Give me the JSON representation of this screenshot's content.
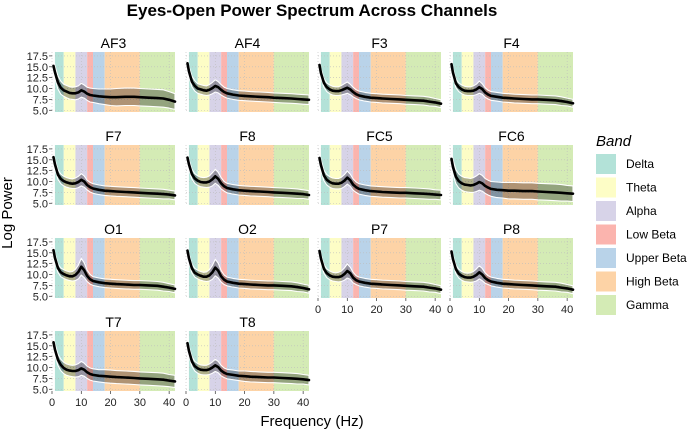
{
  "chart_data": {
    "type": "line",
    "title": "Eyes-Open Power Spectrum Across Channels",
    "xlabel": "Frequency (Hz)",
    "ylabel": "Log Power",
    "x_ticks": [
      0,
      10,
      20,
      30,
      40
    ],
    "y_ticks": [
      "5.0",
      "7.5",
      "10.0",
      "12.5",
      "15.0",
      "17.5"
    ],
    "xlim": [
      0,
      42
    ],
    "ylim": [
      4.6,
      18.4
    ],
    "legend": {
      "title": "Band",
      "position": "right",
      "items": [
        "Delta",
        "Theta",
        "Alpha",
        "Low Beta",
        "Upper Beta",
        "High Beta",
        "Gamma"
      ]
    },
    "bands": [
      {
        "name": "Delta",
        "from": 1,
        "to": 4,
        "color": "#b3e2d8"
      },
      {
        "name": "Theta",
        "from": 4,
        "to": 8,
        "color": "#fdfdc6"
      },
      {
        "name": "Alpha",
        "from": 8,
        "to": 12,
        "color": "#d7d3e8"
      },
      {
        "name": "Low Beta",
        "from": 12,
        "to": 14,
        "color": "#fbb4ae"
      },
      {
        "name": "Upper Beta",
        "from": 14,
        "to": 18,
        "color": "#b9d3e9"
      },
      {
        "name": "High Beta",
        "from": 18,
        "to": 30,
        "color": "#fdd3a6"
      },
      {
        "name": "Gamma",
        "from": 30,
        "to": 42,
        "color": "#d4ebb5"
      }
    ],
    "series": [
      {
        "name": "AF3",
        "x": [
          0.5,
          1,
          2,
          3,
          4,
          5,
          6,
          7,
          8,
          9,
          10,
          11,
          12,
          13,
          14,
          16,
          18,
          20,
          22,
          25,
          28,
          30,
          33,
          36,
          38,
          40,
          42
        ],
        "mean": [
          15.2,
          13.8,
          11.4,
          10.2,
          9.6,
          9.3,
          9.0,
          8.9,
          8.9,
          9.1,
          9.6,
          9.3,
          8.8,
          8.5,
          8.4,
          8.2,
          8.1,
          8.0,
          8.0,
          8.1,
          8.1,
          8.0,
          7.9,
          7.8,
          7.7,
          7.4,
          7.0
        ],
        "spread": [
          1.6,
          1.5,
          1.5,
          1.5,
          1.4,
          1.4,
          1.4,
          1.4,
          1.5,
          1.5,
          1.6,
          1.5,
          1.5,
          1.6,
          1.6,
          1.7,
          1.8,
          1.9,
          2.0,
          2.0,
          2.0,
          2.0,
          2.0,
          2.0,
          2.0,
          1.9,
          1.8
        ]
      },
      {
        "name": "AF4",
        "x": [
          0.5,
          1,
          2,
          3,
          4,
          5,
          6,
          7,
          8,
          9,
          10,
          11,
          12,
          13,
          14,
          16,
          18,
          20,
          22,
          25,
          28,
          30,
          33,
          36,
          38,
          40,
          42
        ],
        "mean": [
          15.8,
          14.0,
          11.6,
          10.6,
          10.0,
          9.8,
          9.6,
          9.5,
          9.7,
          10.1,
          10.6,
          10.3,
          9.7,
          9.2,
          8.9,
          8.6,
          8.4,
          8.3,
          8.2,
          8.1,
          8.0,
          7.9,
          7.8,
          7.7,
          7.6,
          7.5,
          7.4
        ],
        "spread": [
          1.4,
          1.3,
          1.2,
          1.2,
          1.1,
          1.1,
          1.1,
          1.1,
          1.2,
          1.3,
          1.4,
          1.3,
          1.2,
          1.1,
          1.1,
          1.1,
          1.1,
          1.1,
          1.1,
          1.1,
          1.1,
          1.1,
          1.1,
          1.1,
          1.1,
          1.1,
          1.1
        ]
      },
      {
        "name": "F3",
        "x": [
          0.5,
          1,
          2,
          3,
          4,
          5,
          6,
          7,
          8,
          9,
          10,
          11,
          12,
          13,
          14,
          16,
          18,
          20,
          22,
          25,
          28,
          30,
          33,
          36,
          38,
          40,
          42
        ],
        "mean": [
          15.4,
          13.6,
          11.3,
          10.3,
          9.8,
          9.5,
          9.4,
          9.4,
          9.6,
          9.9,
          10.2,
          9.8,
          9.2,
          8.7,
          8.4,
          8.1,
          7.9,
          7.8,
          7.7,
          7.6,
          7.5,
          7.4,
          7.3,
          7.2,
          7.0,
          6.8,
          6.5
        ],
        "spread": [
          1.2,
          1.1,
          1.0,
          1.0,
          1.0,
          1.0,
          1.0,
          1.0,
          1.1,
          1.2,
          1.3,
          1.2,
          1.1,
          1.0,
          1.0,
          1.0,
          1.0,
          1.0,
          1.0,
          1.0,
          1.0,
          1.0,
          1.0,
          1.0,
          1.0,
          0.9,
          0.9
        ]
      },
      {
        "name": "F4",
        "x": [
          0.5,
          1,
          2,
          3,
          4,
          5,
          6,
          7,
          8,
          9,
          10,
          11,
          12,
          13,
          14,
          16,
          18,
          20,
          22,
          25,
          28,
          30,
          33,
          36,
          38,
          40,
          42
        ],
        "mean": [
          15.6,
          13.7,
          11.2,
          10.3,
          9.8,
          9.5,
          9.4,
          9.4,
          9.5,
          9.8,
          10.3,
          9.9,
          9.1,
          8.6,
          8.3,
          8.1,
          7.9,
          7.8,
          7.7,
          7.6,
          7.5,
          7.5,
          7.4,
          7.3,
          7.1,
          6.9,
          6.6
        ],
        "spread": [
          1.2,
          1.1,
          1.0,
          1.0,
          1.0,
          1.0,
          1.0,
          1.0,
          1.1,
          1.2,
          1.4,
          1.2,
          1.1,
          1.0,
          1.0,
          1.0,
          1.0,
          1.0,
          1.0,
          1.0,
          1.0,
          1.0,
          1.0,
          1.0,
          1.0,
          0.9,
          0.9
        ]
      },
      {
        "name": "F7",
        "x": [
          0.5,
          1,
          2,
          3,
          4,
          5,
          6,
          7,
          8,
          9,
          10,
          11,
          12,
          13,
          14,
          16,
          18,
          20,
          22,
          25,
          28,
          30,
          33,
          36,
          38,
          40,
          42
        ],
        "mean": [
          15.6,
          14.0,
          11.6,
          10.6,
          10.1,
          9.8,
          9.6,
          9.5,
          9.6,
          9.9,
          10.4,
          10.0,
          9.2,
          8.7,
          8.4,
          8.1,
          7.9,
          7.8,
          7.7,
          7.6,
          7.5,
          7.4,
          7.3,
          7.2,
          7.1,
          7.0,
          6.8
        ],
        "spread": [
          1.3,
          1.2,
          1.1,
          1.1,
          1.1,
          1.1,
          1.1,
          1.1,
          1.2,
          1.3,
          1.4,
          1.3,
          1.1,
          1.1,
          1.1,
          1.1,
          1.1,
          1.1,
          1.1,
          1.1,
          1.1,
          1.1,
          1.1,
          1.1,
          1.1,
          1.0,
          1.0
        ]
      },
      {
        "name": "F8",
        "x": [
          0.5,
          1,
          2,
          3,
          4,
          5,
          6,
          7,
          8,
          9,
          10,
          11,
          12,
          13,
          14,
          16,
          18,
          20,
          22,
          25,
          28,
          30,
          33,
          36,
          38,
          40,
          42
        ],
        "mean": [
          15.5,
          14.0,
          11.7,
          10.7,
          10.2,
          9.9,
          9.8,
          9.8,
          10.0,
          10.5,
          11.2,
          10.6,
          9.6,
          8.9,
          8.5,
          8.2,
          8.0,
          7.9,
          7.8,
          7.7,
          7.6,
          7.5,
          7.4,
          7.3,
          7.2,
          7.1,
          6.9
        ],
        "spread": [
          1.3,
          1.2,
          1.1,
          1.1,
          1.1,
          1.1,
          1.1,
          1.2,
          1.3,
          1.5,
          1.6,
          1.5,
          1.3,
          1.1,
          1.1,
          1.1,
          1.1,
          1.1,
          1.1,
          1.1,
          1.1,
          1.1,
          1.1,
          1.1,
          1.1,
          1.0,
          1.0
        ]
      },
      {
        "name": "FC5",
        "x": [
          0.5,
          1,
          2,
          3,
          4,
          5,
          6,
          7,
          8,
          9,
          10,
          11,
          12,
          13,
          14,
          16,
          18,
          20,
          22,
          25,
          28,
          30,
          33,
          36,
          38,
          40,
          42
        ],
        "mean": [
          15.4,
          13.8,
          11.4,
          10.4,
          9.9,
          9.6,
          9.5,
          9.5,
          9.7,
          10.2,
          10.9,
          10.3,
          9.3,
          8.7,
          8.3,
          8.0,
          7.8,
          7.7,
          7.6,
          7.5,
          7.4,
          7.4,
          7.3,
          7.2,
          7.1,
          7.0,
          6.9
        ],
        "spread": [
          1.4,
          1.3,
          1.2,
          1.2,
          1.2,
          1.2,
          1.2,
          1.2,
          1.3,
          1.4,
          1.5,
          1.4,
          1.3,
          1.2,
          1.2,
          1.2,
          1.2,
          1.2,
          1.2,
          1.2,
          1.2,
          1.2,
          1.2,
          1.2,
          1.2,
          1.1,
          1.1
        ]
      },
      {
        "name": "FC6",
        "x": [
          0.5,
          1,
          2,
          3,
          4,
          5,
          6,
          7,
          8,
          9,
          10,
          11,
          12,
          13,
          14,
          16,
          18,
          20,
          22,
          25,
          28,
          30,
          33,
          36,
          38,
          40,
          42
        ],
        "mean": [
          15.2,
          13.4,
          11.1,
          10.1,
          9.6,
          9.3,
          9.2,
          9.1,
          9.2,
          9.5,
          9.9,
          9.6,
          9.0,
          8.6,
          8.3,
          8.1,
          8.0,
          7.9,
          7.9,
          7.8,
          7.8,
          7.7,
          7.6,
          7.5,
          7.4,
          7.3,
          7.2
        ],
        "spread": [
          1.8,
          1.7,
          1.6,
          1.6,
          1.6,
          1.6,
          1.6,
          1.6,
          1.7,
          1.8,
          1.9,
          1.8,
          1.7,
          1.7,
          1.7,
          1.8,
          1.8,
          1.9,
          1.9,
          1.9,
          1.9,
          1.9,
          1.9,
          1.9,
          1.9,
          1.8,
          1.8
        ]
      },
      {
        "name": "O1",
        "x": [
          0.5,
          1,
          2,
          3,
          4,
          5,
          6,
          7,
          8,
          9,
          10,
          11,
          12,
          13,
          14,
          16,
          18,
          20,
          22,
          25,
          28,
          30,
          33,
          36,
          38,
          40,
          42
        ],
        "mean": [
          15.6,
          13.9,
          11.5,
          10.5,
          10.1,
          9.8,
          9.6,
          9.6,
          9.9,
          10.6,
          11.8,
          11.0,
          9.7,
          8.9,
          8.5,
          8.2,
          8.0,
          7.9,
          7.8,
          7.7,
          7.6,
          7.6,
          7.5,
          7.4,
          7.2,
          7.0,
          6.7
        ],
        "spread": [
          1.2,
          1.1,
          1.0,
          1.0,
          1.0,
          1.0,
          1.0,
          1.1,
          1.3,
          1.6,
          1.9,
          1.7,
          1.3,
          1.1,
          1.0,
          1.0,
          1.0,
          1.0,
          1.0,
          1.0,
          1.0,
          1.0,
          1.0,
          1.0,
          1.0,
          0.9,
          0.9
        ]
      },
      {
        "name": "O2",
        "x": [
          0.5,
          1,
          2,
          3,
          4,
          5,
          6,
          7,
          8,
          9,
          10,
          11,
          12,
          13,
          14,
          16,
          18,
          20,
          22,
          25,
          28,
          30,
          33,
          36,
          38,
          40,
          42
        ],
        "mean": [
          15.5,
          13.8,
          11.4,
          10.4,
          10.0,
          9.7,
          9.5,
          9.5,
          9.8,
          10.5,
          11.6,
          10.9,
          9.6,
          8.8,
          8.4,
          8.1,
          7.9,
          7.8,
          7.7,
          7.6,
          7.5,
          7.5,
          7.4,
          7.3,
          7.1,
          6.9,
          6.6
        ],
        "spread": [
          1.2,
          1.1,
          1.0,
          1.0,
          1.0,
          1.0,
          1.0,
          1.1,
          1.3,
          1.6,
          1.9,
          1.7,
          1.3,
          1.1,
          1.0,
          1.0,
          1.0,
          1.0,
          1.0,
          1.0,
          1.0,
          1.0,
          1.0,
          1.0,
          1.0,
          0.9,
          0.9
        ]
      },
      {
        "name": "P7",
        "x": [
          0.5,
          1,
          2,
          3,
          4,
          5,
          6,
          7,
          8,
          9,
          10,
          11,
          12,
          13,
          14,
          16,
          18,
          20,
          22,
          25,
          28,
          30,
          33,
          36,
          38,
          40,
          42
        ],
        "mean": [
          15.4,
          13.7,
          11.3,
          10.3,
          9.8,
          9.5,
          9.4,
          9.4,
          9.6,
          10.1,
          10.8,
          10.3,
          9.3,
          8.7,
          8.4,
          8.1,
          7.9,
          7.8,
          7.7,
          7.6,
          7.5,
          7.4,
          7.3,
          7.2,
          7.0,
          6.8,
          6.5
        ],
        "spread": [
          1.2,
          1.1,
          1.0,
          1.0,
          1.0,
          1.0,
          1.0,
          1.1,
          1.2,
          1.4,
          1.6,
          1.4,
          1.2,
          1.0,
          1.0,
          1.0,
          1.0,
          1.0,
          1.0,
          1.0,
          1.0,
          1.0,
          1.0,
          1.0,
          1.0,
          0.9,
          0.9
        ]
      },
      {
        "name": "P8",
        "x": [
          0.5,
          1,
          2,
          3,
          4,
          5,
          6,
          7,
          8,
          9,
          10,
          11,
          12,
          13,
          14,
          16,
          18,
          20,
          22,
          25,
          28,
          30,
          33,
          36,
          38,
          40,
          42
        ],
        "mean": [
          15.3,
          13.6,
          11.2,
          10.2,
          9.7,
          9.4,
          9.3,
          9.3,
          9.5,
          9.9,
          10.5,
          10.0,
          9.2,
          8.7,
          8.4,
          8.1,
          7.9,
          7.8,
          7.7,
          7.6,
          7.5,
          7.4,
          7.3,
          7.2,
          7.0,
          6.8,
          6.5
        ],
        "spread": [
          1.2,
          1.1,
          1.0,
          1.0,
          1.0,
          1.0,
          1.0,
          1.1,
          1.2,
          1.4,
          1.5,
          1.4,
          1.2,
          1.0,
          1.0,
          1.0,
          1.0,
          1.0,
          1.0,
          1.0,
          1.0,
          1.0,
          1.0,
          1.0,
          1.0,
          0.9,
          0.9
        ]
      },
      {
        "name": "T7",
        "x": [
          0.5,
          1,
          2,
          3,
          4,
          5,
          6,
          7,
          8,
          9,
          10,
          11,
          12,
          13,
          14,
          16,
          18,
          20,
          22,
          25,
          28,
          30,
          33,
          36,
          38,
          40,
          42
        ],
        "mean": [
          15.8,
          14.2,
          11.8,
          10.6,
          9.9,
          9.5,
          9.3,
          9.2,
          9.2,
          9.4,
          9.8,
          9.5,
          8.9,
          8.5,
          8.3,
          8.1,
          8.0,
          7.9,
          7.8,
          7.7,
          7.6,
          7.5,
          7.4,
          7.3,
          7.2,
          7.0,
          6.8
        ],
        "spread": [
          1.5,
          1.4,
          1.3,
          1.3,
          1.3,
          1.3,
          1.3,
          1.3,
          1.4,
          1.5,
          1.6,
          1.5,
          1.4,
          1.4,
          1.4,
          1.4,
          1.5,
          1.5,
          1.5,
          1.5,
          1.5,
          1.5,
          1.5,
          1.5,
          1.5,
          1.4,
          1.4
        ]
      },
      {
        "name": "T8",
        "x": [
          0.5,
          1,
          2,
          3,
          4,
          5,
          6,
          7,
          8,
          9,
          10,
          11,
          12,
          13,
          14,
          16,
          18,
          20,
          22,
          25,
          28,
          30,
          33,
          36,
          38,
          40,
          42
        ],
        "mean": [
          15.6,
          13.9,
          11.4,
          10.3,
          9.8,
          9.5,
          9.4,
          9.4,
          9.6,
          10.0,
          10.5,
          10.1,
          9.3,
          8.8,
          8.5,
          8.3,
          8.1,
          8.0,
          7.9,
          7.8,
          7.7,
          7.7,
          7.6,
          7.5,
          7.4,
          7.3,
          7.1
        ],
        "spread": [
          1.3,
          1.2,
          1.1,
          1.1,
          1.1,
          1.1,
          1.1,
          1.1,
          1.2,
          1.3,
          1.4,
          1.3,
          1.2,
          1.1,
          1.1,
          1.1,
          1.1,
          1.2,
          1.2,
          1.2,
          1.2,
          1.2,
          1.2,
          1.2,
          1.2,
          1.1,
          1.1
        ]
      }
    ]
  }
}
